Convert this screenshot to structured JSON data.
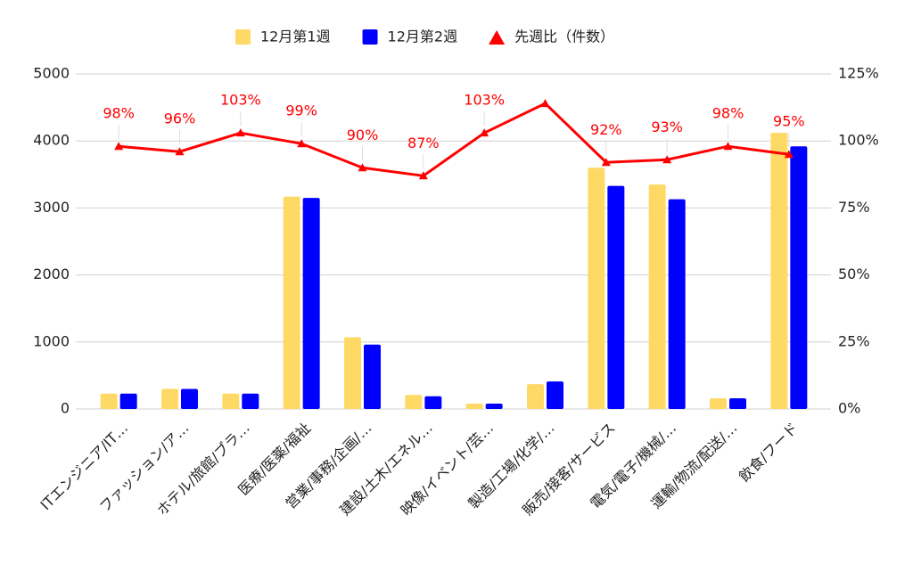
{
  "chart_data": {
    "type": "bar-line",
    "categories": [
      "ITエンジニア/IT…",
      "ファッション/ア…",
      "ホテル/旅館/ブラ…",
      "医療/医薬/福祉",
      "営業/事務/企画/…",
      "建設/土木/エネル…",
      "映像/イベント/芸…",
      "製造/工場/化学/…",
      "販売/接客/サービス",
      "電気/電子/機械/…",
      "運輸/物流/配送/…",
      "飲食/フード"
    ],
    "series": [
      {
        "name": "12月第1週",
        "color": "#ffd966",
        "type": "bar",
        "values": [
          230,
          300,
          230,
          3170,
          1070,
          210,
          80,
          370,
          3600,
          3350,
          160,
          4120
        ]
      },
      {
        "name": "12月第2週",
        "color": "#0000ff",
        "type": "bar",
        "values": [
          230,
          300,
          230,
          3150,
          960,
          190,
          80,
          410,
          3330,
          3130,
          160,
          3920
        ]
      },
      {
        "name": "先週比（件数）",
        "color": "#ff0000",
        "type": "line",
        "axis": "y2",
        "values": [
          98,
          96,
          103,
          99,
          90,
          87,
          103,
          114,
          92,
          93,
          98,
          95
        ],
        "value_labels": [
          "98%",
          "96%",
          "103%",
          "99%",
          "90%",
          "87%",
          "103%",
          null,
          "92%",
          "93%",
          "98%",
          "95%"
        ]
      }
    ],
    "ylim": [
      0,
      5000
    ],
    "yticks": [
      0,
      1000,
      2000,
      3000,
      4000,
      5000
    ],
    "y2lim": [
      0,
      125
    ],
    "y2ticks": [
      {
        "value": 0,
        "label": "0%"
      },
      {
        "value": 25,
        "label": "25%"
      },
      {
        "value": 50,
        "label": "50%"
      },
      {
        "value": 75,
        "label": "75%"
      },
      {
        "value": 100,
        "label": "100%"
      },
      {
        "value": 125,
        "label": "125%"
      }
    ],
    "grid": true,
    "legend": "top"
  }
}
